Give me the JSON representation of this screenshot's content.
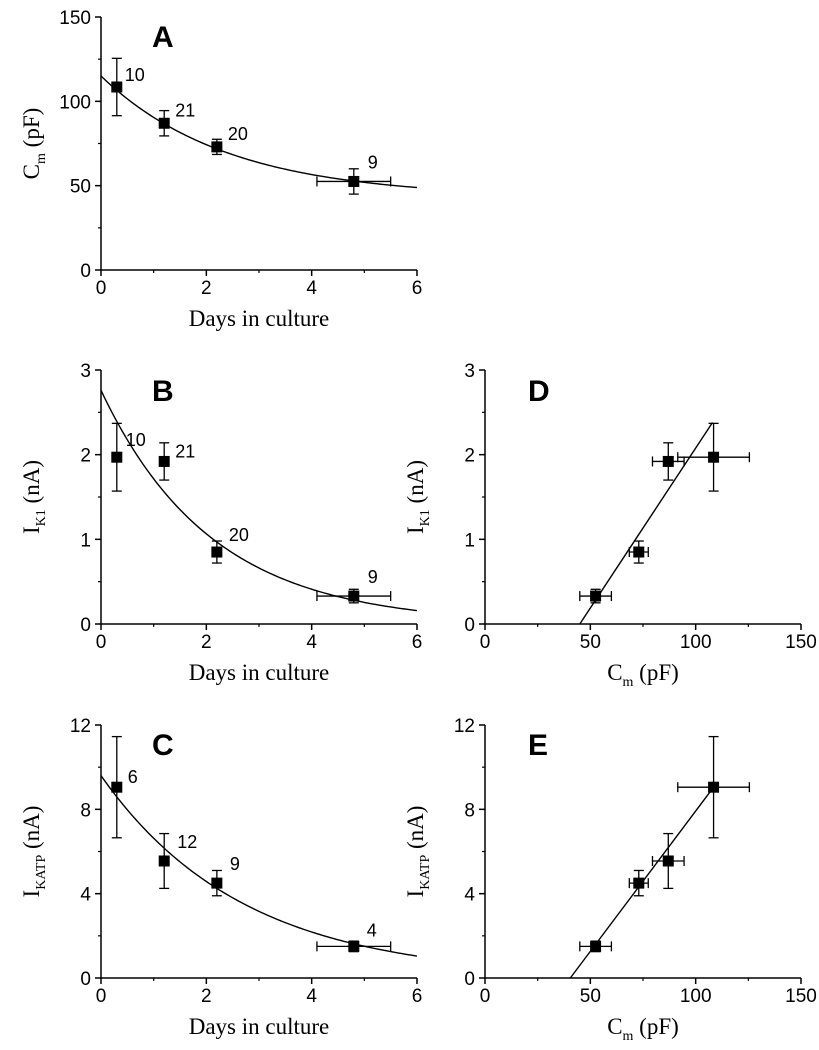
{
  "chart_data": [
    {
      "panel": "A",
      "type": "scatter",
      "xlabel": "Days in culture",
      "ylabel": "C",
      "ylabel_sub": "m",
      "ylabel_unit": " (pF)",
      "xlim": [
        0,
        6
      ],
      "ylim": [
        0,
        150
      ],
      "xticks": [
        0,
        2,
        4,
        6
      ],
      "yticks": [
        0,
        50,
        100,
        150
      ],
      "points": [
        {
          "x": 0.3,
          "y": 108.5,
          "yerr": 17,
          "n": "10"
        },
        {
          "x": 1.2,
          "y": 87,
          "yerr": 7.5,
          "n": "21"
        },
        {
          "x": 2.2,
          "y": 73,
          "yerr": 4.5,
          "n": "20"
        },
        {
          "x": 4.8,
          "y": 52.5,
          "yerr": 7.5,
          "xerr": 0.7,
          "n": "9"
        }
      ],
      "fit": {
        "kind": "exponential",
        "y0": 43,
        "A": 72,
        "tau": 2.4
      }
    },
    {
      "panel": "B",
      "type": "scatter",
      "xlabel": "Days in culture",
      "ylabel": "I",
      "ylabel_sub": "K1",
      "ylabel_unit": " (nA)",
      "xlim": [
        0,
        6
      ],
      "ylim": [
        0,
        3
      ],
      "xticks": [
        0,
        2,
        4,
        6
      ],
      "yticks": [
        0,
        1,
        2,
        3
      ],
      "points": [
        {
          "x": 0.3,
          "y": 1.97,
          "yerr": 0.4,
          "n": "10"
        },
        {
          "x": 1.2,
          "y": 1.92,
          "yerr": 0.22,
          "n": "21"
        },
        {
          "x": 2.2,
          "y": 0.85,
          "yerr": 0.13,
          "n": "20"
        },
        {
          "x": 4.8,
          "y": 0.33,
          "yerr": 0.08,
          "xerr": 0.7,
          "n": "9"
        }
      ],
      "fit": {
        "kind": "exponential",
        "y0": 0,
        "A": 2.76,
        "tau": 2.1
      }
    },
    {
      "panel": "C",
      "type": "scatter",
      "xlabel": "Days in culture",
      "ylabel": "I",
      "ylabel_sub": "KATP",
      "ylabel_unit": " (nA)",
      "xlim": [
        0,
        6
      ],
      "ylim": [
        0,
        12
      ],
      "xticks": [
        0,
        2,
        4,
        6
      ],
      "yticks": [
        0,
        4,
        8,
        12
      ],
      "points": [
        {
          "x": 0.3,
          "y": 9.05,
          "yerr": 2.4,
          "n": "6"
        },
        {
          "x": 1.2,
          "y": 5.55,
          "yerr": 1.3,
          "n": "12"
        },
        {
          "x": 2.2,
          "y": 4.5,
          "yerr": 0.6,
          "n": "9"
        },
        {
          "x": 4.8,
          "y": 1.5,
          "yerr": 0.25,
          "xerr": 0.7,
          "n": "4"
        }
      ],
      "fit": {
        "kind": "exponential",
        "y0": 0,
        "A": 9.6,
        "tau": 2.7
      }
    },
    {
      "panel": "D",
      "type": "scatter",
      "xlabel": "C",
      "xlabel_sub": "m",
      "xlabel_unit": " (pF)",
      "ylabel": "I",
      "ylabel_sub": "K1",
      "ylabel_unit": " (nA)",
      "xlim": [
        0,
        150
      ],
      "ylim": [
        0,
        3
      ],
      "xticks": [
        0,
        50,
        100,
        150
      ],
      "yticks": [
        0,
        1,
        2,
        3
      ],
      "points": [
        {
          "x": 52.5,
          "y": 0.33,
          "xerr": 7.5,
          "yerr": 0.08
        },
        {
          "x": 73,
          "y": 0.85,
          "xerr": 4.5,
          "yerr": 0.13
        },
        {
          "x": 87,
          "y": 1.92,
          "xerr": 7.5,
          "yerr": 0.22
        },
        {
          "x": 108.5,
          "y": 1.97,
          "xerr": 17,
          "yerr": 0.4
        }
      ],
      "fit": {
        "kind": "linear",
        "x1": 45,
        "y1": 0,
        "x2": 108,
        "y2": 2.38
      }
    },
    {
      "panel": "E",
      "type": "scatter",
      "xlabel": "C",
      "xlabel_sub": "m",
      "xlabel_unit": " (pF)",
      "ylabel": "I",
      "ylabel_sub": "KATP",
      "ylabel_unit": " (nA)",
      "xlim": [
        0,
        150
      ],
      "ylim": [
        0,
        12
      ],
      "xticks": [
        0,
        50,
        100,
        150
      ],
      "yticks": [
        0,
        4,
        8,
        12
      ],
      "points": [
        {
          "x": 52.5,
          "y": 1.5,
          "xerr": 7.5,
          "yerr": 0.25
        },
        {
          "x": 73,
          "y": 4.5,
          "xerr": 4.5,
          "yerr": 0.6
        },
        {
          "x": 87,
          "y": 5.55,
          "xerr": 7.5,
          "yerr": 1.3
        },
        {
          "x": 108.5,
          "y": 9.05,
          "xerr": 17,
          "yerr": 2.4
        }
      ],
      "fit": {
        "kind": "linear",
        "x1": 40.5,
        "y1": 0,
        "x2": 108.5,
        "y2": 9.05
      }
    }
  ]
}
